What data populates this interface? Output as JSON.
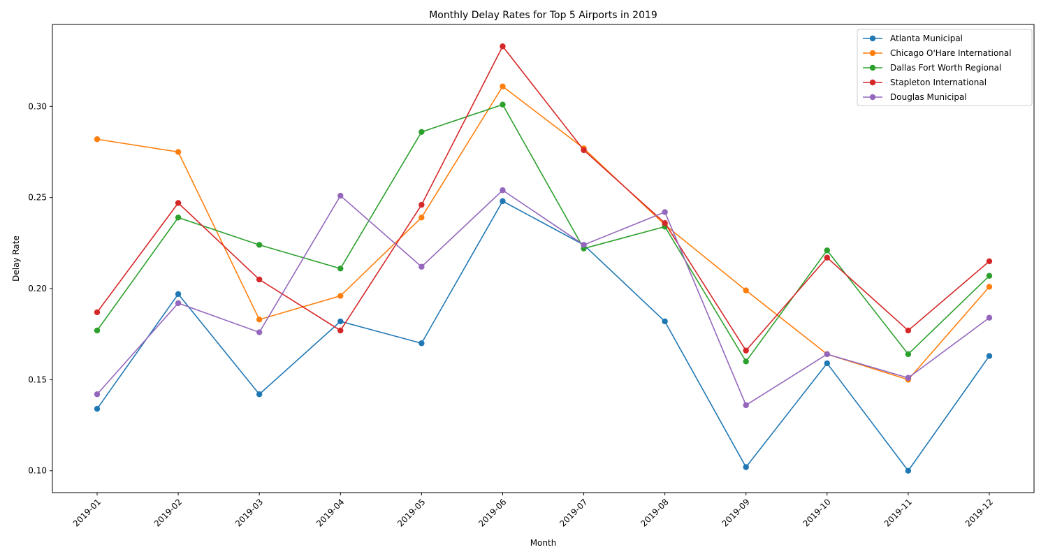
{
  "chart_data": {
    "type": "line",
    "title": "Monthly Delay Rates for Top 5 Airports in 2019",
    "xlabel": "Month",
    "ylabel": "Delay Rate",
    "categories": [
      "2019-01",
      "2019-02",
      "2019-03",
      "2019-04",
      "2019-05",
      "2019-06",
      "2019-07",
      "2019-08",
      "2019-09",
      "2019-10",
      "2019-11",
      "2019-12"
    ],
    "ylim": [
      0.088,
      0.345
    ],
    "yticks": [
      "0.10",
      "0.15",
      "0.20",
      "0.25",
      "0.30"
    ],
    "legend_position": "top-right",
    "grid": false,
    "series": [
      {
        "name": "Atlanta Municipal",
        "color": "#1f77b4",
        "values": [
          0.134,
          0.197,
          0.142,
          0.182,
          0.17,
          0.248,
          0.224,
          0.182,
          0.102,
          0.159,
          0.1,
          0.163
        ]
      },
      {
        "name": "Chicago O'Hare International",
        "color": "#ff7f0e",
        "values": [
          0.282,
          0.275,
          0.183,
          0.196,
          0.239,
          0.311,
          0.277,
          0.235,
          0.199,
          0.164,
          0.15,
          0.201
        ]
      },
      {
        "name": "Dallas Fort Worth Regional",
        "color": "#2ca02c",
        "values": [
          0.177,
          0.239,
          0.224,
          0.211,
          0.286,
          0.301,
          0.222,
          0.234,
          0.16,
          0.221,
          0.164,
          0.207
        ]
      },
      {
        "name": "Stapleton International",
        "color": "#d62728",
        "values": [
          0.187,
          0.247,
          0.205,
          0.177,
          0.246,
          0.333,
          0.276,
          0.236,
          0.166,
          0.217,
          0.177,
          0.215
        ]
      },
      {
        "name": "Douglas Municipal",
        "color": "#9467bd",
        "values": [
          0.142,
          0.192,
          0.176,
          0.251,
          0.212,
          0.254,
          0.224,
          0.242,
          0.136,
          0.164,
          0.151,
          0.184
        ]
      }
    ]
  }
}
